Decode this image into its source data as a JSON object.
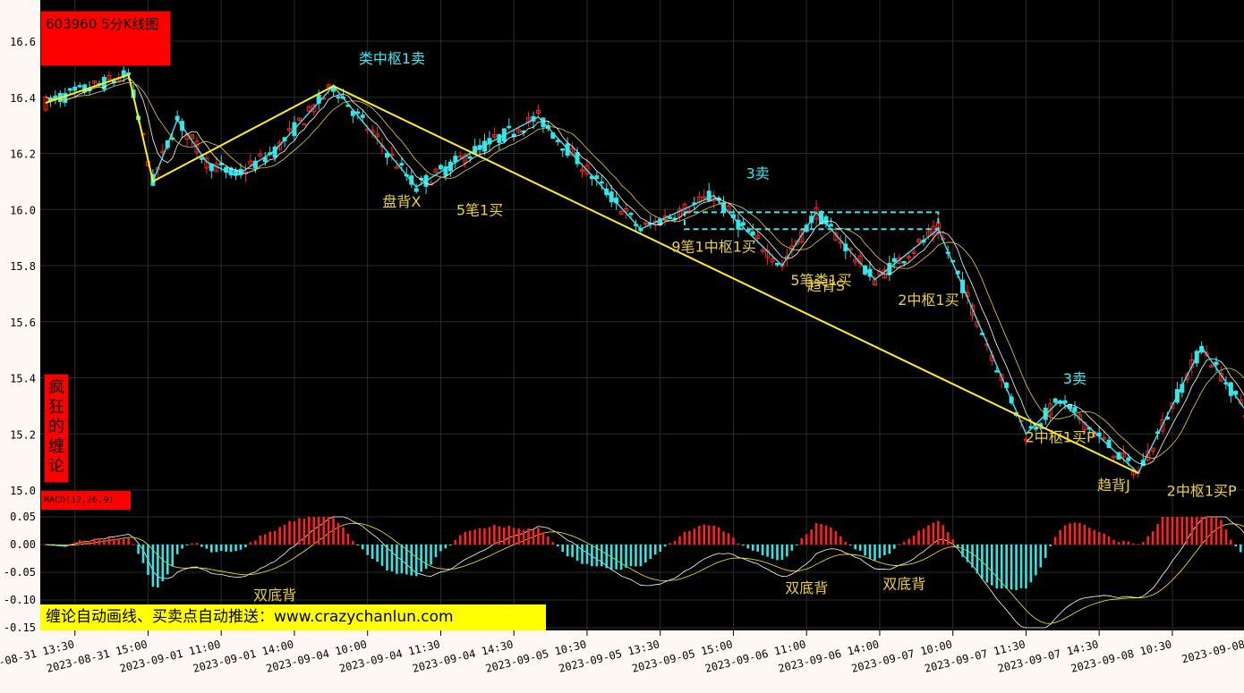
{
  "title": "603960 5分K线图",
  "vertical_label": [
    "疯",
    "狂",
    "的",
    "缠",
    "论"
  ],
  "indicator_label": "MACD(12,26,9)",
  "promo": "缠论自动画线、买卖点自动推送：www.crazychanlun.com",
  "colors": {
    "up": "#ff2020",
    "down": "#32e6e6",
    "bi": "#40e8f0",
    "seg": "#ffee20",
    "dif": "#ffffff",
    "dea": "#ffee20",
    "zhongshu": "#40e8f0",
    "bg": "#000000"
  },
  "chart_data": {
    "type": "candlestick",
    "price_axis": {
      "ticks": [
        "15.0",
        "15.2",
        "15.4",
        "15.6",
        "15.8",
        "16.0",
        "16.2",
        "16.4",
        "16.6"
      ],
      "ylim": [
        15.0,
        16.6
      ]
    },
    "macd_axis": {
      "ticks": [
        "0.05",
        "0.00",
        "-0.05",
        "-0.10",
        "-0.15"
      ],
      "ylim": [
        -0.15,
        0.05
      ]
    },
    "x_ticks": [
      "2023-08-31 13:30",
      "2023-08-31 15:00",
      "2023-09-01 11:00",
      "2023-09-01 14:00",
      "2023-09-04 10:00",
      "2023-09-04 11:30",
      "2023-09-04 14:30",
      "2023-09-05 10:30",
      "2023-09-05 13:30",
      "2023-09-05 15:00",
      "2023-09-06 11:00",
      "2023-09-06 14:00",
      "2023-09-07 10:00",
      "2023-09-07 11:30",
      "2023-09-07 14:30",
      "2023-09-08 10:30",
      "2023-09-08"
    ],
    "x_tick_index": [
      6,
      21,
      36,
      51,
      66,
      81,
      96,
      111,
      126,
      141,
      156,
      171,
      186,
      201,
      216,
      231,
      246
    ],
    "n_bars": 250,
    "bi": [
      [
        0,
        16.38
      ],
      [
        17,
        16.48
      ],
      [
        22,
        16.1
      ],
      [
        27,
        16.32
      ],
      [
        33,
        16.17
      ],
      [
        39,
        16.12
      ],
      [
        47,
        16.21
      ],
      [
        59,
        16.44
      ],
      [
        76,
        16.08
      ],
      [
        87,
        16.2
      ],
      [
        101,
        16.33
      ],
      [
        122,
        15.93
      ],
      [
        137,
        16.05
      ],
      [
        141,
        15.97
      ],
      [
        151,
        15.8
      ],
      [
        158,
        15.99
      ],
      [
        170,
        15.75
      ],
      [
        183,
        15.93
      ],
      [
        201,
        15.2
      ],
      [
        208,
        15.32
      ],
      [
        224,
        15.06
      ],
      [
        237,
        15.51
      ],
      [
        249,
        15.21
      ]
    ],
    "segments": [
      [
        0,
        16.38
      ],
      [
        17,
        16.48
      ],
      [
        22,
        16.1
      ],
      [
        59,
        16.44
      ],
      [
        224,
        15.06
      ]
    ],
    "zhongshu": [
      {
        "x0": 131,
        "x1": 183,
        "y_low": 15.93,
        "y_high": 15.99
      },
      {
        "x0": 131,
        "x1": 183,
        "y_low": 15.93,
        "y_high": 15.93
      }
    ],
    "annotations": [
      {
        "text": "类中枢1卖",
        "i": 71,
        "v": 16.52,
        "color": "#40e8f0"
      },
      {
        "text": "盘背X",
        "i": 73,
        "v": 16.01,
        "color": "#e8d040"
      },
      {
        "text": "5笔1买",
        "i": 89,
        "v": 15.98,
        "color": "#e8d040"
      },
      {
        "text": "3卖",
        "i": 146,
        "v": 16.11,
        "color": "#40e8f0"
      },
      {
        "text": "9笔1中枢1买",
        "i": 137,
        "v": 15.85,
        "color": "#e8d040"
      },
      {
        "text": "5笔类1买",
        "i": 159,
        "v": 15.73,
        "color": "#e8d040"
      },
      {
        "text": "趋背S",
        "i": 160,
        "v": 15.71,
        "color": "#e8d040"
      },
      {
        "text": "2中枢1买",
        "i": 181,
        "v": 15.66,
        "color": "#e8d040"
      },
      {
        "text": "3卖",
        "i": 211,
        "v": 15.38,
        "color": "#40e8f0"
      },
      {
        "text": "2中枢1买P",
        "i": 208,
        "v": 15.17,
        "color": "#e8d040"
      },
      {
        "text": "趋背J",
        "i": 219,
        "v": 15.0,
        "color": "#e8d040"
      },
      {
        "text": "2中枢1买P",
        "i": 237,
        "v": 14.98,
        "color": "#e8d040"
      },
      {
        "text": "2",
        "i": 253,
        "v": 15.23,
        "color": "#e8d040"
      }
    ],
    "macd_annotations": [
      {
        "text": "双底背",
        "i": 47,
        "v": -0.1,
        "color": "#e8d040"
      },
      {
        "text": "双底背",
        "i": 156,
        "v": -0.087,
        "color": "#e8d040"
      },
      {
        "text": "双底背",
        "i": 176,
        "v": -0.08,
        "color": "#e8d040"
      }
    ]
  }
}
